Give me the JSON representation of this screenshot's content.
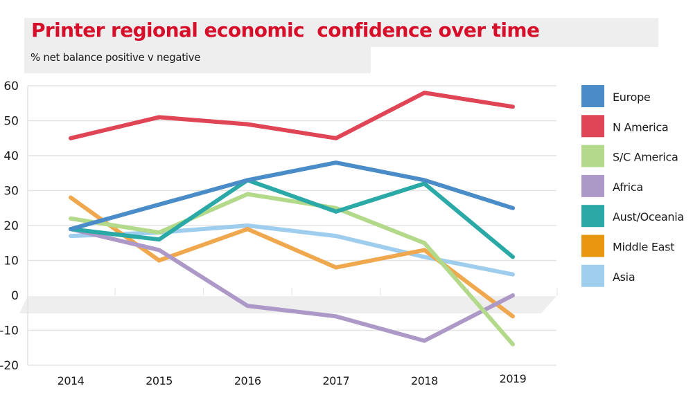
{
  "header": {
    "title": "Printer regional economic  confidence over time",
    "subtitle": "% net balance positive v negative"
  },
  "chart_data": {
    "type": "line",
    "title": "Printer regional economic  confidence over time",
    "subtitle": "% net balance positive v negative",
    "xlabel": "",
    "ylabel": "% net balance positive v negative",
    "categories": [
      "2014",
      "2015",
      "2016",
      "2017",
      "2018",
      "2019"
    ],
    "ylim": [
      -20,
      60
    ],
    "yticks": [
      "60",
      "50",
      "40",
      "30",
      "20",
      "10",
      "0",
      "-10",
      "-20"
    ],
    "ytick_values": [
      60,
      50,
      40,
      30,
      20,
      10,
      0,
      -10,
      -20
    ],
    "grid": true,
    "legend_position": "right",
    "series": [
      {
        "name": "Europe",
        "color": "#4a8cc7",
        "values": [
          19,
          26,
          33,
          38,
          33,
          25
        ]
      },
      {
        "name": "N America",
        "color": "#e04556",
        "values": [
          45,
          51,
          49,
          45,
          58,
          54
        ]
      },
      {
        "name": "S/C America",
        "color": "#b3d98a",
        "values": [
          22,
          18,
          29,
          25,
          15,
          -14
        ]
      },
      {
        "name": "Africa",
        "color": "#ad99c8",
        "values": [
          19,
          13,
          -3,
          -6,
          -13,
          0
        ]
      },
      {
        "name": "Aust/Oceania",
        "color": "#2aa9a6",
        "values": [
          19,
          16,
          33,
          24,
          32,
          11
        ]
      },
      {
        "name": "Middle East",
        "color": "#f0a84e",
        "values": [
          28,
          10,
          19,
          8,
          13,
          -6
        ]
      },
      {
        "name": "Asia",
        "color": "#9fcdee",
        "values": [
          17,
          18,
          20,
          17,
          11,
          6
        ]
      }
    ],
    "legend_swatch_colors": {
      "Middle East": "#e8950f"
    }
  }
}
